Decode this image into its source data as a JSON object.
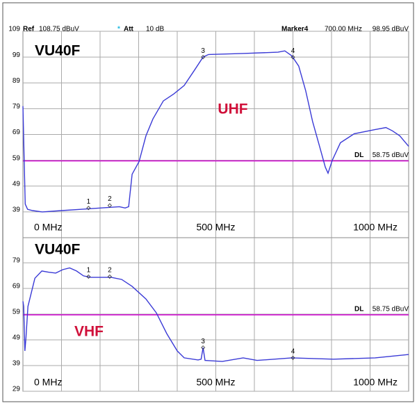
{
  "header": {
    "ref_label": "Ref",
    "ref_value": "108.75 dBuV",
    "att_star": "*",
    "att_label": "Att",
    "att_value": "10 dB",
    "marker_label": "Marker4",
    "marker_freq": "700.00 MHz",
    "marker_level": "98.95 dBuV"
  },
  "chart_data": [
    {
      "type": "line",
      "title": "VU40F",
      "annotation": "UHF",
      "xlim": [
        0,
        1000
      ],
      "xticks": [
        {
          "value": 0,
          "label": "0 MHz"
        },
        {
          "value": 500,
          "label": "500 MHz"
        },
        {
          "value": 1000,
          "label": "1000 MHz"
        }
      ],
      "ylim": [
        29,
        109
      ],
      "yticks": [
        39,
        49,
        59,
        69,
        79,
        89,
        99,
        109
      ],
      "grid": true,
      "x": [
        0,
        3,
        6,
        12,
        25,
        50,
        100,
        150,
        200,
        250,
        265,
        274,
        283,
        301,
        319,
        337,
        364,
        391,
        418,
        445,
        467,
        481,
        571,
        661,
        679,
        697,
        715,
        733,
        751,
        769,
        784,
        791,
        802,
        823,
        859,
        913,
        941,
        958,
        977,
        1000
      ],
      "series": [
        {
          "color": "#3a3ad6",
          "values": [
            80,
            60,
            42,
            40,
            39.5,
            39,
            39.5,
            40,
            40.5,
            41,
            40.5,
            41,
            53.6,
            58.5,
            68.5,
            75,
            82,
            84.7,
            88,
            94,
            99,
            100,
            100.4,
            100.9,
            101.4,
            99.5,
            95.5,
            86,
            74,
            64.4,
            56.3,
            54,
            59,
            65.8,
            69.3,
            70.9,
            71.7,
            70.4,
            68.5,
            64.4
          ]
        }
      ],
      "markers": {
        "labels": [
          "1",
          "2",
          "3",
          "4"
        ],
        "x": [
          170,
          225,
          467,
          700
        ],
        "y": [
          40.5,
          41.5,
          99,
          98.95
        ]
      },
      "display_line": {
        "label": "DL",
        "value": 58.75,
        "value_label": "58.75 dBuV",
        "color": "#d000d0"
      }
    },
    {
      "type": "line",
      "title": "VU40F",
      "annotation": "VHF",
      "xlim": [
        0,
        1000
      ],
      "xticks": [
        {
          "value": 0,
          "label": "0 MHz"
        },
        {
          "value": 500,
          "label": "500 MHz"
        },
        {
          "value": 1000,
          "label": "1000 MHz"
        }
      ],
      "ylim": [
        29,
        88.75
      ],
      "yticks": [
        29,
        39,
        49,
        59,
        69,
        79
      ],
      "grid": true,
      "x": [
        0,
        2,
        5,
        8,
        13,
        31,
        49,
        67,
        85,
        103,
        121,
        139,
        157,
        175,
        229,
        256,
        283,
        319,
        346,
        373,
        400,
        418,
        454,
        462,
        467,
        472,
        517,
        571,
        607,
        697,
        805,
        913,
        1000
      ],
      "series": [
        {
          "color": "#3a3ad6",
          "values": [
            64,
            62,
            44.7,
            50,
            62,
            73,
            75.8,
            75.3,
            75,
            76.3,
            77,
            75.8,
            73.9,
            73.3,
            73.3,
            72.5,
            69.8,
            64.9,
            59.5,
            51.4,
            44.7,
            42,
            41.2,
            41.5,
            46,
            41,
            40.6,
            42,
            41,
            42,
            41.5,
            42,
            43.3
          ]
        }
      ],
      "markers": {
        "labels": [
          "1",
          "2",
          "3",
          "4"
        ],
        "x": [
          170,
          225,
          467,
          700
        ],
        "y": [
          73.6,
          73.6,
          46,
          42
        ]
      },
      "display_line": {
        "label": "DL",
        "value": 58.75,
        "value_label": "58.75 dBuV",
        "color": "#d000d0"
      }
    }
  ]
}
